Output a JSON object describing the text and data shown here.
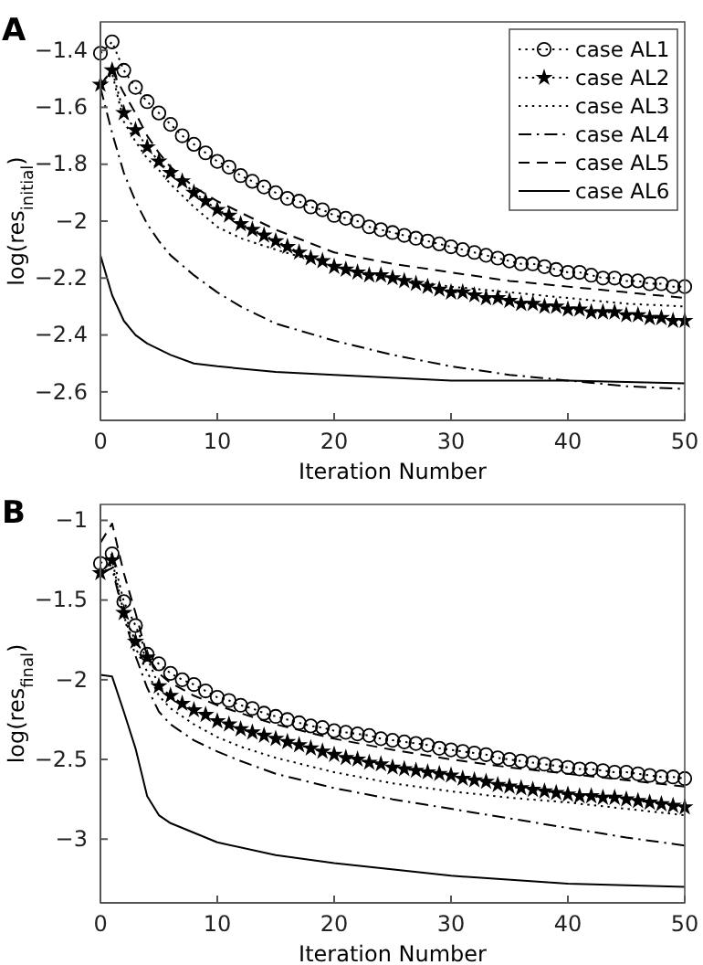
{
  "chart_data": [
    {
      "type": "line",
      "title": "A",
      "xlabel": "Iteration Number",
      "ylabel": "log(res$_{initial}$)",
      "xlim": [
        0,
        50
      ],
      "ylim": [
        -2.7,
        -1.3
      ],
      "xticks": [
        0,
        10,
        20,
        30,
        40,
        50
      ],
      "yticks": [
        -1.4,
        -1.6,
        -1.8,
        -2,
        -2.2,
        -2.4,
        -2.6
      ],
      "grid": false,
      "legend": "top right",
      "series": [
        {
          "name": "case AL1",
          "color": "#000000",
          "marker": "circle",
          "line_style": "dotted",
          "x": [
            0,
            1,
            2,
            3,
            4,
            5,
            6,
            7,
            8,
            9,
            10,
            11,
            12,
            13,
            14,
            15,
            16,
            17,
            18,
            19,
            20,
            21,
            22,
            23,
            24,
            25,
            26,
            27,
            28,
            29,
            30,
            31,
            32,
            33,
            34,
            35,
            36,
            37,
            38,
            39,
            40,
            41,
            42,
            43,
            44,
            45,
            46,
            47,
            48,
            49,
            50
          ],
          "values": [
            -1.41,
            -1.37,
            -1.47,
            -1.53,
            -1.58,
            -1.62,
            -1.66,
            -1.7,
            -1.73,
            -1.76,
            -1.79,
            -1.81,
            -1.84,
            -1.86,
            -1.88,
            -1.9,
            -1.92,
            -1.93,
            -1.95,
            -1.96,
            -1.98,
            -1.99,
            -2.0,
            -2.02,
            -2.03,
            -2.04,
            -2.05,
            -2.06,
            -2.07,
            -2.08,
            -2.09,
            -2.1,
            -2.11,
            -2.12,
            -2.13,
            -2.14,
            -2.15,
            -2.15,
            -2.16,
            -2.17,
            -2.18,
            -2.18,
            -2.19,
            -2.2,
            -2.2,
            -2.21,
            -2.21,
            -2.22,
            -2.22,
            -2.23,
            -2.23
          ]
        },
        {
          "name": "case AL2",
          "color": "#000000",
          "marker": "star",
          "line_style": "dotted",
          "x": [
            0,
            1,
            2,
            3,
            4,
            5,
            6,
            7,
            8,
            9,
            10,
            11,
            12,
            13,
            14,
            15,
            16,
            17,
            18,
            19,
            20,
            21,
            22,
            23,
            24,
            25,
            26,
            27,
            28,
            29,
            30,
            31,
            32,
            33,
            34,
            35,
            36,
            37,
            38,
            39,
            40,
            41,
            42,
            43,
            44,
            45,
            46,
            47,
            48,
            49,
            50
          ],
          "values": [
            -1.52,
            -1.47,
            -1.62,
            -1.68,
            -1.74,
            -1.79,
            -1.83,
            -1.86,
            -1.9,
            -1.93,
            -1.96,
            -1.98,
            -2.01,
            -2.03,
            -2.05,
            -2.07,
            -2.09,
            -2.11,
            -2.13,
            -2.14,
            -2.16,
            -2.17,
            -2.18,
            -2.19,
            -2.19,
            -2.2,
            -2.21,
            -2.22,
            -2.23,
            -2.24,
            -2.25,
            -2.25,
            -2.26,
            -2.27,
            -2.27,
            -2.28,
            -2.29,
            -2.29,
            -2.3,
            -2.3,
            -2.31,
            -2.31,
            -2.32,
            -2.32,
            -2.32,
            -2.33,
            -2.33,
            -2.34,
            -2.34,
            -2.35,
            -2.35
          ]
        },
        {
          "name": "case AL3",
          "color": "#000000",
          "marker": "none",
          "line_style": "dotted",
          "x": [
            0,
            1,
            2,
            3,
            4,
            5,
            6,
            8,
            10,
            12,
            15,
            20,
            25,
            30,
            35,
            40,
            45,
            50
          ],
          "values": [
            -1.53,
            -1.48,
            -1.65,
            -1.72,
            -1.78,
            -1.82,
            -1.87,
            -1.95,
            -2.02,
            -2.06,
            -2.1,
            -2.16,
            -2.2,
            -2.23,
            -2.25,
            -2.27,
            -2.29,
            -2.3
          ]
        },
        {
          "name": "case AL4",
          "color": "#000000",
          "marker": "none",
          "line_style": "dashdot",
          "x": [
            0,
            1,
            2,
            3,
            4,
            5,
            6,
            8,
            10,
            12,
            15,
            20,
            25,
            30,
            35,
            40,
            45,
            50
          ],
          "values": [
            -1.53,
            -1.69,
            -1.83,
            -1.93,
            -2.01,
            -2.07,
            -2.12,
            -2.19,
            -2.25,
            -2.3,
            -2.36,
            -2.42,
            -2.47,
            -2.51,
            -2.54,
            -2.56,
            -2.58,
            -2.59
          ]
        },
        {
          "name": "case AL5",
          "color": "#000000",
          "marker": "none",
          "line_style": "dashed",
          "x": [
            0,
            1,
            2,
            3,
            4,
            5,
            6,
            8,
            10,
            12,
            15,
            20,
            25,
            30,
            35,
            40,
            45,
            50
          ],
          "values": [
            -1.52,
            -1.47,
            -1.55,
            -1.62,
            -1.7,
            -1.76,
            -1.81,
            -1.88,
            -1.93,
            -1.97,
            -2.03,
            -2.11,
            -2.15,
            -2.18,
            -2.21,
            -2.23,
            -2.25,
            -2.27
          ]
        },
        {
          "name": "case AL6",
          "color": "#000000",
          "marker": "none",
          "line_style": "solid",
          "x": [
            0,
            1,
            2,
            3,
            4,
            5,
            6,
            8,
            10,
            15,
            20,
            30,
            40,
            50
          ],
          "values": [
            -2.12,
            -2.26,
            -2.35,
            -2.4,
            -2.43,
            -2.45,
            -2.47,
            -2.5,
            -2.51,
            -2.53,
            -2.54,
            -2.56,
            -2.56,
            -2.57
          ]
        }
      ]
    },
    {
      "type": "line",
      "title": "B",
      "xlabel": "Iteration Number",
      "ylabel": "log(res$_{final}$)",
      "xlim": [
        0,
        50
      ],
      "ylim": [
        -3.4,
        -0.9
      ],
      "xticks": [
        0,
        10,
        20,
        30,
        40,
        50
      ],
      "yticks": [
        -1,
        -1.5,
        -2,
        -2.5,
        -3
      ],
      "grid": false,
      "legend": false,
      "series": [
        {
          "color": "#000000",
          "marker": "circle",
          "line_style": "dotted",
          "x": [
            0,
            1,
            2,
            3,
            4,
            5,
            6,
            7,
            8,
            9,
            10,
            11,
            12,
            13,
            14,
            15,
            16,
            17,
            18,
            19,
            20,
            21,
            22,
            23,
            24,
            25,
            26,
            27,
            28,
            29,
            30,
            31,
            32,
            33,
            34,
            35,
            36,
            37,
            38,
            39,
            40,
            41,
            42,
            43,
            44,
            45,
            46,
            47,
            48,
            49,
            50
          ],
          "values": [
            -1.27,
            -1.21,
            -1.51,
            -1.66,
            -1.84,
            -1.9,
            -1.96,
            -2.0,
            -2.03,
            -2.07,
            -2.11,
            -2.13,
            -2.16,
            -2.18,
            -2.21,
            -2.23,
            -2.25,
            -2.27,
            -2.29,
            -2.3,
            -2.32,
            -2.33,
            -2.34,
            -2.35,
            -2.37,
            -2.38,
            -2.39,
            -2.4,
            -2.41,
            -2.43,
            -2.44,
            -2.45,
            -2.46,
            -2.47,
            -2.49,
            -2.5,
            -2.51,
            -2.52,
            -2.53,
            -2.54,
            -2.55,
            -2.56,
            -2.56,
            -2.57,
            -2.58,
            -2.58,
            -2.59,
            -2.6,
            -2.61,
            -2.61,
            -2.62
          ]
        },
        {
          "color": "#000000",
          "marker": "star",
          "line_style": "dotted",
          "x": [
            0,
            1,
            2,
            3,
            4,
            5,
            6,
            7,
            8,
            9,
            10,
            11,
            12,
            13,
            14,
            15,
            16,
            17,
            18,
            19,
            20,
            21,
            22,
            23,
            24,
            25,
            26,
            27,
            28,
            29,
            30,
            31,
            32,
            33,
            34,
            35,
            36,
            37,
            38,
            39,
            40,
            41,
            42,
            43,
            44,
            45,
            46,
            47,
            48,
            49,
            50
          ],
          "values": [
            -1.33,
            -1.25,
            -1.58,
            -1.76,
            -1.86,
            -2.04,
            -2.1,
            -2.15,
            -2.19,
            -2.22,
            -2.26,
            -2.28,
            -2.31,
            -2.33,
            -2.35,
            -2.37,
            -2.39,
            -2.41,
            -2.43,
            -2.45,
            -2.47,
            -2.49,
            -2.5,
            -2.52,
            -2.53,
            -2.55,
            -2.56,
            -2.57,
            -2.58,
            -2.59,
            -2.6,
            -2.62,
            -2.63,
            -2.64,
            -2.66,
            -2.67,
            -2.68,
            -2.69,
            -2.7,
            -2.71,
            -2.72,
            -2.73,
            -2.73,
            -2.74,
            -2.74,
            -2.75,
            -2.76,
            -2.77,
            -2.78,
            -2.79,
            -2.8
          ]
        },
        {
          "color": "#000000",
          "marker": "none",
          "line_style": "dotted",
          "x": [
            0,
            1,
            2,
            3,
            4,
            5,
            6,
            8,
            10,
            12,
            15,
            20,
            25,
            30,
            35,
            40,
            45,
            50
          ],
          "values": [
            -1.35,
            -1.27,
            -1.6,
            -1.8,
            -1.95,
            -2.1,
            -2.18,
            -2.28,
            -2.36,
            -2.42,
            -2.49,
            -2.58,
            -2.65,
            -2.7,
            -2.74,
            -2.77,
            -2.81,
            -2.85
          ]
        },
        {
          "color": "#000000",
          "marker": "none",
          "line_style": "dashdot",
          "x": [
            0,
            1,
            2,
            3,
            4,
            5,
            6,
            8,
            10,
            12,
            15,
            20,
            25,
            30,
            35,
            40,
            45,
            50
          ],
          "values": [
            -1.33,
            -1.3,
            -1.6,
            -1.85,
            -2.05,
            -2.2,
            -2.28,
            -2.38,
            -2.45,
            -2.51,
            -2.59,
            -2.68,
            -2.75,
            -2.81,
            -2.87,
            -2.93,
            -2.99,
            -3.04
          ]
        },
        {
          "color": "#000000",
          "marker": "none",
          "line_style": "dashed",
          "x": [
            0,
            1,
            2,
            3,
            4,
            5,
            6,
            8,
            10,
            12,
            15,
            20,
            25,
            30,
            35,
            40,
            45,
            50
          ],
          "values": [
            -1.14,
            -1.02,
            -1.33,
            -1.58,
            -1.85,
            -1.96,
            -2.02,
            -2.1,
            -2.16,
            -2.21,
            -2.28,
            -2.37,
            -2.44,
            -2.5,
            -2.55,
            -2.59,
            -2.63,
            -2.67
          ]
        },
        {
          "color": "#000000",
          "marker": "none",
          "line_style": "solid",
          "x": [
            0,
            1,
            2,
            3,
            4,
            5,
            6,
            8,
            10,
            15,
            20,
            30,
            40,
            50
          ],
          "values": [
            -1.97,
            -1.98,
            -2.2,
            -2.43,
            -2.73,
            -2.85,
            -2.9,
            -2.96,
            -3.02,
            -3.1,
            -3.15,
            -3.23,
            -3.28,
            -3.3
          ]
        }
      ]
    }
  ]
}
